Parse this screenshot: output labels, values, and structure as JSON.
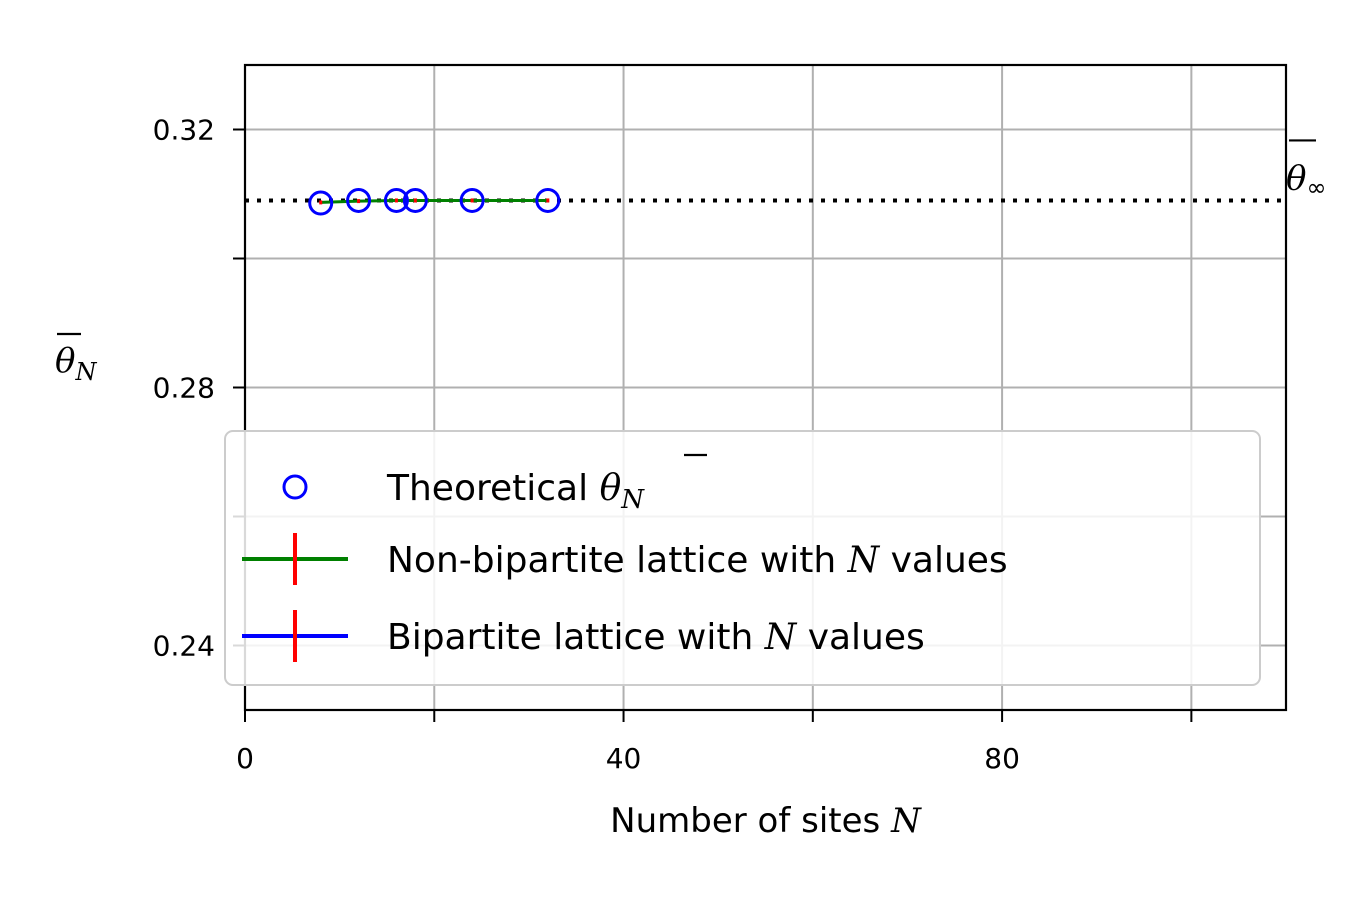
{
  "chart_data": {
    "type": "scatter",
    "xlabel": "Number of sites",
    "xlabel_symbol": "N",
    "ylabel_symbol": "θ",
    "ylabel_subscript": "N",
    "xlim": [
      0,
      110
    ],
    "ylim": [
      0.23,
      0.33
    ],
    "xticks": [
      0,
      20,
      40,
      60,
      80,
      100
    ],
    "xtick_labels": [
      "0",
      "",
      "40",
      "",
      "80",
      ""
    ],
    "yticks": [
      0.24,
      0.26,
      0.28,
      0.3,
      0.32
    ],
    "ytick_labels": [
      "0.24",
      "",
      "0.28",
      "",
      "0.32"
    ],
    "grid": true,
    "asymptote": {
      "value": 0.309,
      "symbol": "θ",
      "subscript": "∞"
    },
    "theoretical": {
      "name": "Theoretical",
      "x": [
        8,
        12,
        16,
        18,
        24,
        32
      ],
      "y": [
        0.3086,
        0.309,
        0.309,
        0.309,
        0.309,
        0.309
      ]
    },
    "non_bipartite": {
      "name": "Non-bipartite lattice with N values",
      "x": [
        8,
        12,
        16,
        18,
        24,
        32
      ],
      "y": [
        0.3087,
        0.3089,
        0.309,
        0.309,
        0.309,
        0.309
      ]
    },
    "bipartite": {
      "name": "Bipartite lattice with N values",
      "x": [],
      "y": []
    },
    "legend": {
      "position": "lower-left",
      "entries": [
        {
          "pre": "Theoretical ",
          "sym": "θ",
          "sub": "N",
          "post": ""
        },
        {
          "pre": "Non-bipartite lattice with ",
          "sym": "N",
          "sub": "",
          "post": " values"
        },
        {
          "pre": "Bipartite lattice with ",
          "sym": "N",
          "sub": "",
          "post": " values"
        }
      ]
    },
    "colors": {
      "theoretical": "#0000ff",
      "non_bipartite": "#008000",
      "bipartite": "#0000ff",
      "errorbar": "#ff0000",
      "grid": "#b0b0b0",
      "asymptote": "#000000"
    }
  }
}
